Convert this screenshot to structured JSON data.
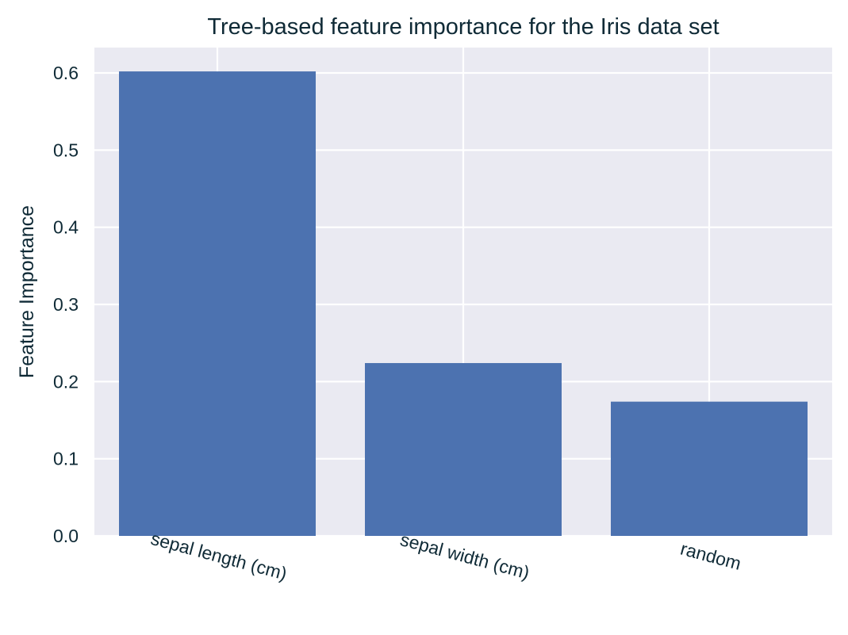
{
  "chart_data": {
    "type": "bar",
    "title": "Tree-based feature importance for the Iris data set",
    "xlabel": "",
    "ylabel": "Feature Importance",
    "categories": [
      "sepal length (cm)",
      "sepal width (cm)",
      "random"
    ],
    "values": [
      0.602,
      0.224,
      0.174
    ],
    "ylim": [
      0,
      0.63
    ],
    "yticks": [
      "0.0",
      "0.1",
      "0.2",
      "0.3",
      "0.4",
      "0.5",
      "0.6"
    ],
    "grid": true,
    "colors": {
      "bar": "#4c72b0",
      "background": "#eaeaf2",
      "grid": "#ffffff"
    }
  }
}
